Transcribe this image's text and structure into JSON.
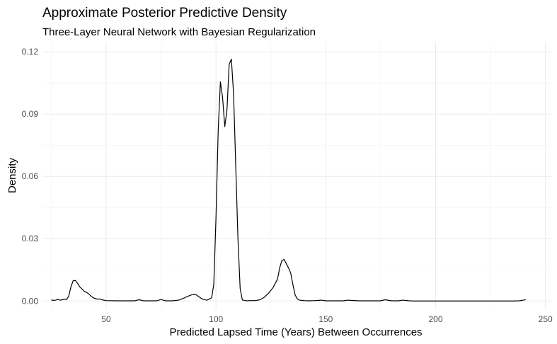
{
  "chart_data": {
    "type": "line",
    "title": "Approximate Posterior Predictive Density",
    "subtitle": "Three-Layer Neural Network with Bayesian Regularization",
    "xlabel": "Predicted Lapsed Time (Years) Between Occurrences",
    "ylabel": "Density",
    "xlim": [
      21,
      253
    ],
    "ylim": [
      -0.004,
      0.1245
    ],
    "x_ticks": [
      50,
      100,
      150,
      200,
      250
    ],
    "x_tick_labels": [
      "50",
      "100",
      "150",
      "200",
      "250"
    ],
    "y_ticks": [
      0.0,
      0.03,
      0.06,
      0.09,
      0.12
    ],
    "y_tick_labels": [
      "0.00",
      "0.03",
      "0.06",
      "0.09",
      "0.12"
    ],
    "grid": true,
    "legend": "none",
    "series": [
      {
        "line_color": "#000000",
        "x": [
          25,
          26,
          27,
          28,
          29,
          30,
          31,
          32,
          33,
          34,
          35,
          36,
          37,
          38,
          39,
          40,
          41,
          42,
          43,
          44,
          45,
          46,
          47,
          48,
          50,
          55,
          60,
          63,
          65,
          67,
          70,
          73,
          75,
          77,
          80,
          83,
          85,
          87,
          89,
          90,
          91,
          92,
          94,
          96,
          98,
          99,
          100,
          101,
          102,
          103,
          104,
          105,
          106,
          107,
          108,
          109,
          110,
          111,
          112,
          114,
          116,
          118,
          120,
          122,
          124,
          126,
          128,
          129,
          130,
          131,
          132,
          133,
          134,
          135,
          136,
          137,
          138,
          139,
          140,
          142,
          145,
          148,
          150,
          153,
          156,
          158,
          160,
          165,
          170,
          175,
          177,
          180,
          183,
          185,
          188,
          190,
          200,
          210,
          220,
          230,
          235,
          238,
          240,
          241
        ],
        "y": [
          0.0005,
          0.0003,
          0.0004,
          0.0008,
          0.0004,
          0.0006,
          0.0009,
          0.0007,
          0.0025,
          0.007,
          0.0098,
          0.0099,
          0.0085,
          0.0068,
          0.0058,
          0.0047,
          0.0042,
          0.0035,
          0.0025,
          0.0016,
          0.0012,
          0.0009,
          0.001,
          0.0006,
          0.0002,
          0.0001,
          0.0001,
          0.0001,
          0.0006,
          0.0001,
          0.0001,
          0.0001,
          0.0007,
          0.0001,
          0.0001,
          0.0004,
          0.0012,
          0.0022,
          0.003,
          0.0032,
          0.003,
          0.0022,
          0.0008,
          0.0004,
          0.0015,
          0.008,
          0.04,
          0.082,
          0.1055,
          0.098,
          0.084,
          0.092,
          0.114,
          0.1165,
          0.1,
          0.065,
          0.03,
          0.006,
          0.0005,
          0.0001,
          0.0002,
          0.0002,
          0.0006,
          0.0018,
          0.0038,
          0.0065,
          0.0105,
          0.016,
          0.0195,
          0.02,
          0.018,
          0.016,
          0.0135,
          0.008,
          0.003,
          0.001,
          0.0004,
          0.0003,
          0.0002,
          0.0001,
          0.0002,
          0.0004,
          0.0001,
          0.0001,
          0.0001,
          0.0001,
          0.0004,
          0.0001,
          0.0001,
          0.0001,
          0.0006,
          0.0001,
          0.0001,
          0.0004,
          0.0001,
          0.0,
          0.0,
          0.0,
          0.0,
          0.0,
          0.0,
          0.0001,
          0.0004,
          0.0007
        ]
      }
    ]
  }
}
